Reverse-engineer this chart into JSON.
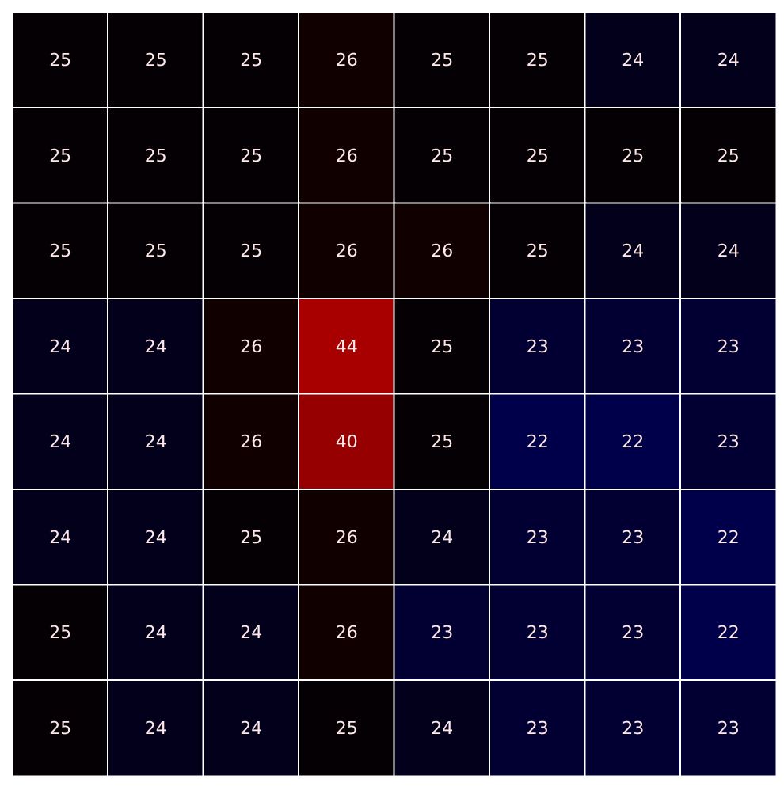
{
  "chart_data": {
    "type": "heatmap",
    "categories": [
      null,
      null,
      null,
      null,
      null,
      null,
      null,
      null
    ],
    "y_categories": [
      null,
      null,
      null,
      null,
      null,
      null,
      null,
      null
    ],
    "cells": [
      [
        25,
        25,
        25,
        26,
        25,
        25,
        24,
        24
      ],
      [
        25,
        25,
        25,
        26,
        25,
        25,
        25,
        25
      ],
      [
        25,
        25,
        25,
        26,
        26,
        25,
        24,
        24
      ],
      [
        24,
        24,
        26,
        44,
        25,
        23,
        23,
        23
      ],
      [
        24,
        24,
        26,
        40,
        25,
        22,
        22,
        23
      ],
      [
        24,
        24,
        25,
        26,
        24,
        23,
        23,
        22
      ],
      [
        25,
        24,
        24,
        26,
        23,
        23,
        23,
        22
      ],
      [
        25,
        24,
        24,
        25,
        24,
        23,
        23,
        23
      ]
    ],
    "data_labels": true
  }
}
